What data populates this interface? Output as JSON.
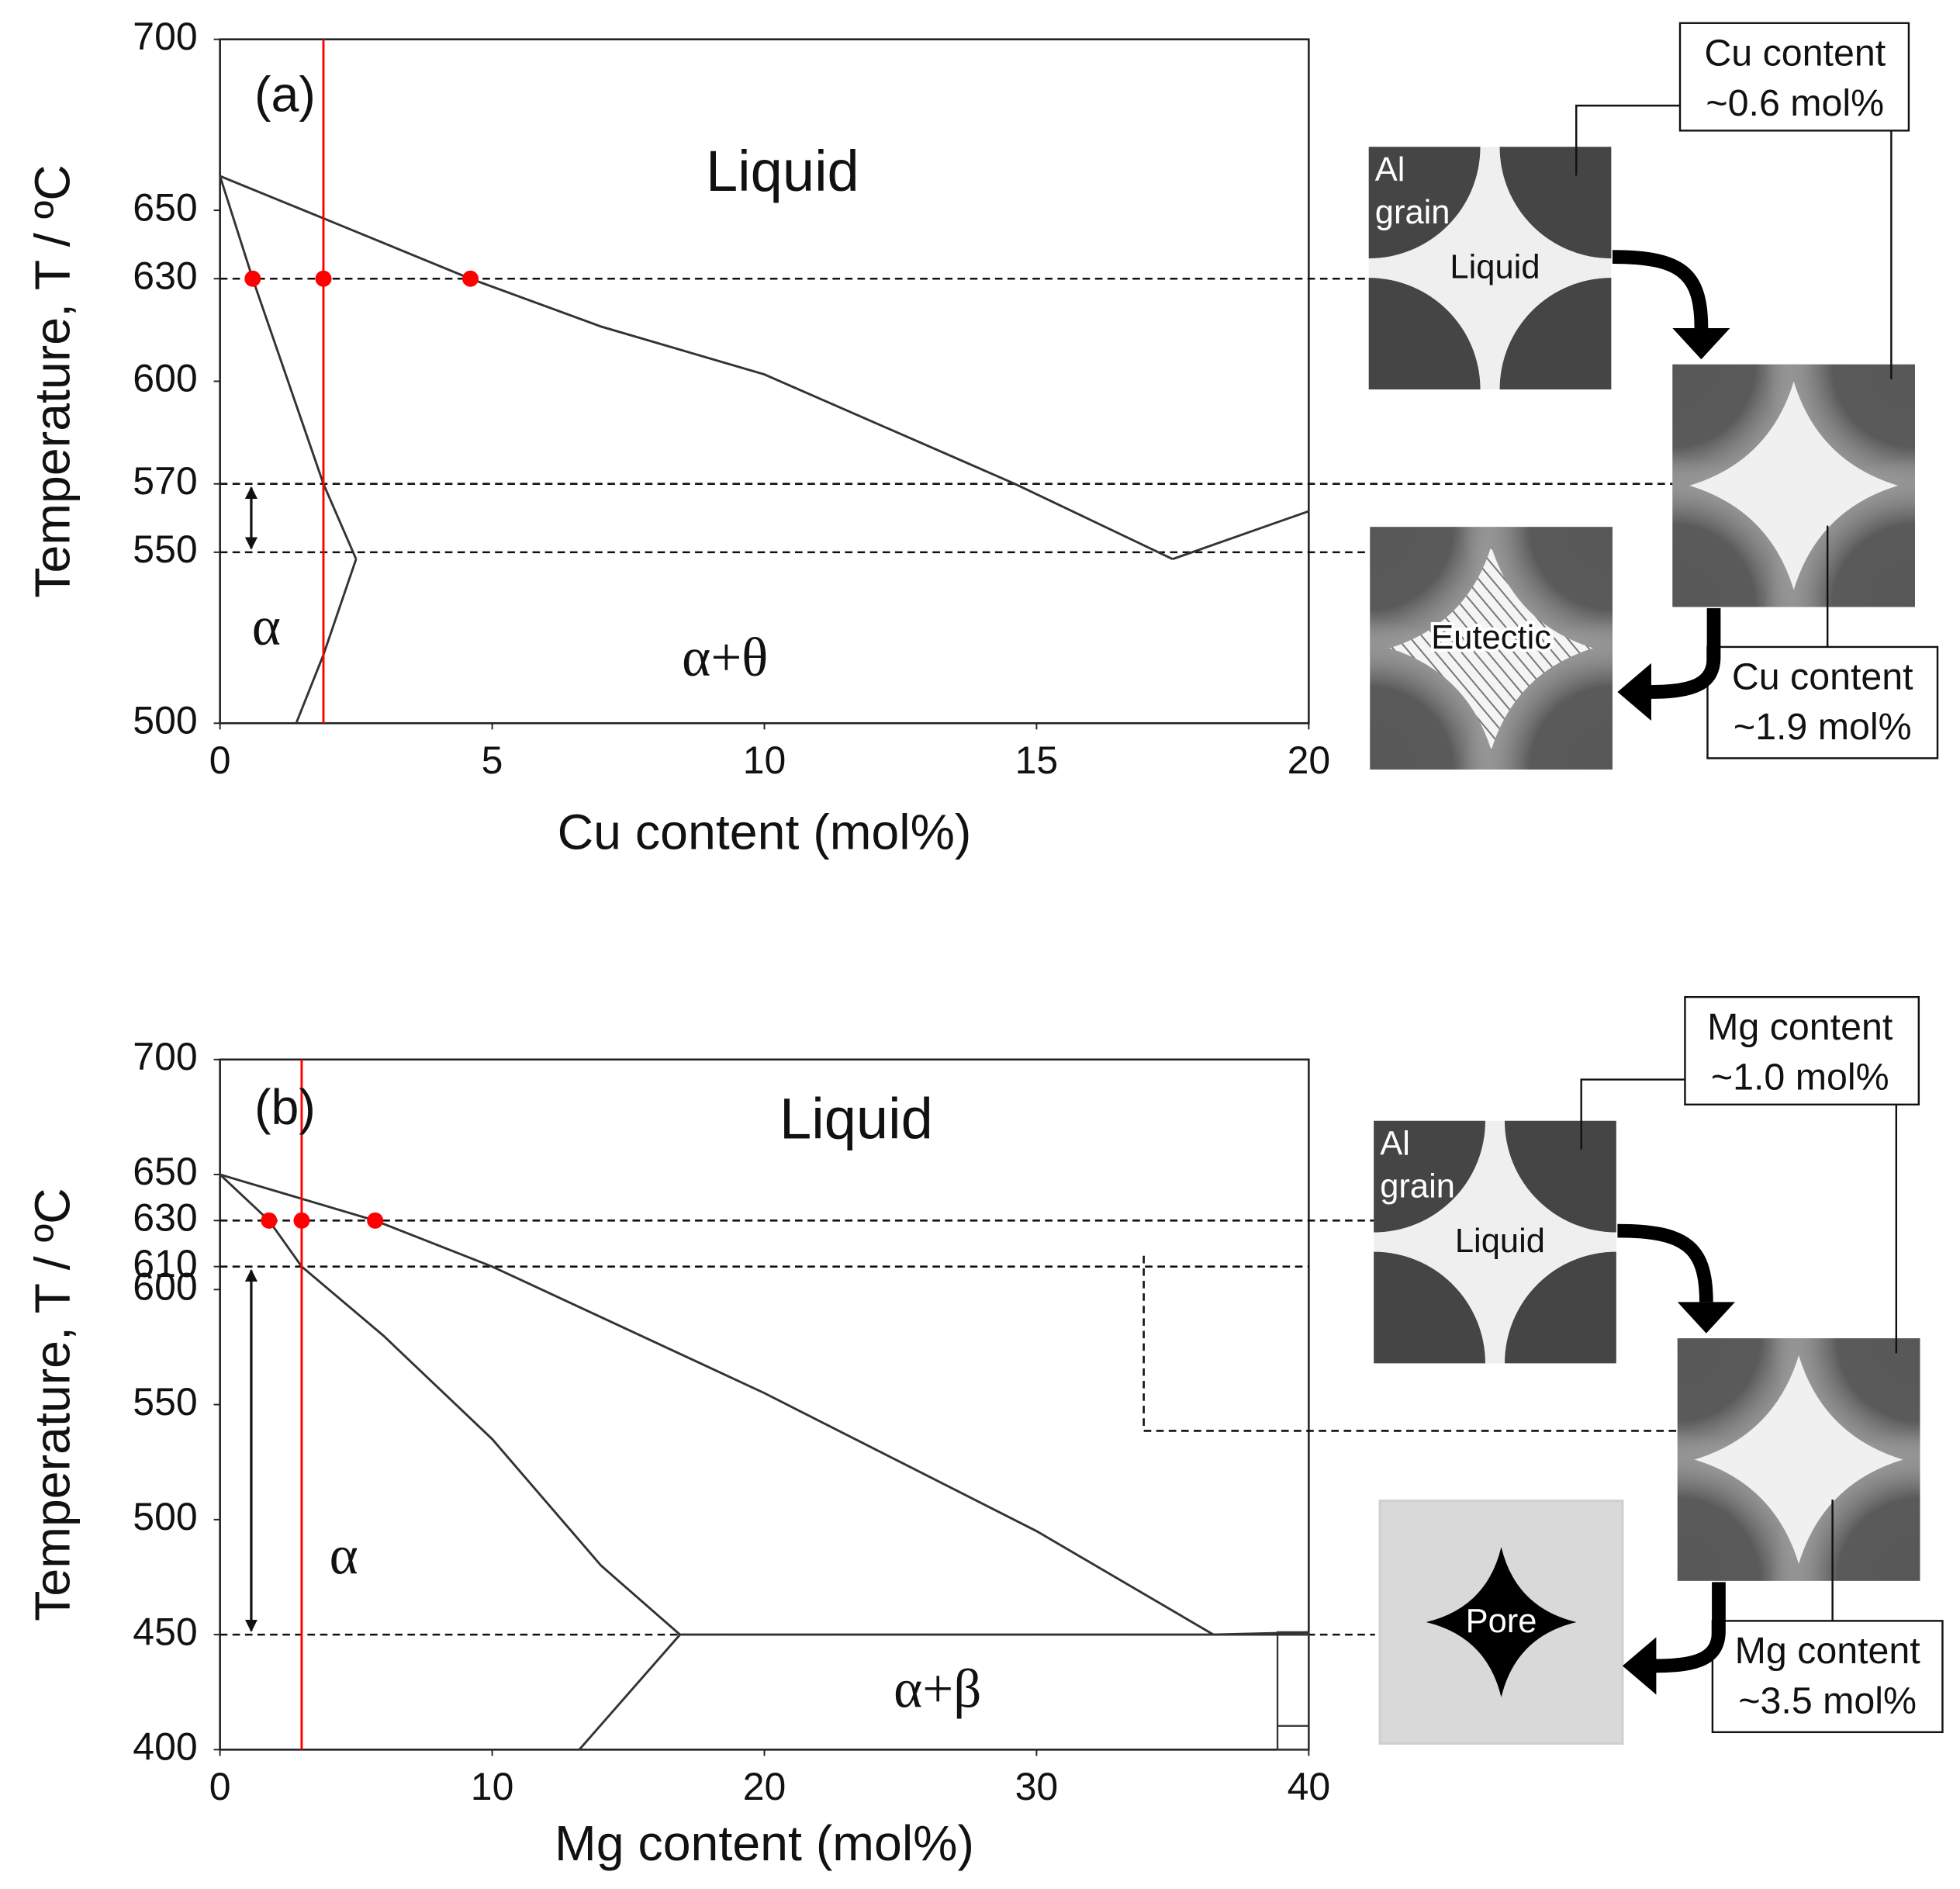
{
  "chart_data": [
    {
      "type": "line",
      "label": "(a)",
      "xlabel": "Cu content (mol%)",
      "ylabel": "Temperature, T / ºC",
      "xlim": [
        0,
        20
      ],
      "ylim": [
        500,
        700
      ],
      "xticks": [
        0,
        5,
        10,
        15,
        20
      ],
      "yticks": [
        500,
        550,
        570,
        600,
        630,
        650,
        700
      ],
      "series": [
        {
          "color": "#333333",
          "x": [
            0,
            2,
            4.6,
            7,
            10,
            14.6,
            17.5
          ],
          "values": [
            660,
            647,
            630,
            616,
            602,
            570,
            548
          ]
        },
        {
          "color": "#333333",
          "x": [
            17.5,
            20
          ],
          "values": [
            548,
            562
          ]
        },
        {
          "color": "#333333",
          "x": [
            0,
            0.6,
            1.9,
            2.5
          ],
          "values": [
            660,
            630,
            570,
            548
          ]
        },
        {
          "color": "#333333",
          "x": [
            2.5,
            1.9,
            1.4
          ],
          "values": [
            548,
            520,
            500
          ]
        }
      ],
      "points": {
        "color": "#ff0000",
        "x": [
          0.6,
          1.9,
          4.6
        ],
        "values": [
          630,
          630,
          630
        ]
      },
      "vline": {
        "color": "#ff0000",
        "value": 1.9
      },
      "reference_lines": [
        630,
        570,
        550
      ],
      "region_labels": [
        "Liquid",
        "α",
        "α+θ"
      ],
      "schematic": {
        "start_box": [
          "Cu content",
          "~0.6 mol%"
        ],
        "grain": [
          "Al",
          "grain"
        ],
        "liquid": "Liquid",
        "final": "Eutectic",
        "end_box": [
          "Cu content",
          "~1.9 mol%"
        ]
      }
    },
    {
      "type": "line",
      "label": "(b)",
      "xlabel": "Mg content (mol%)",
      "ylabel": "Temperature, T / ºC",
      "xlim": [
        0,
        40
      ],
      "ylim": [
        400,
        700
      ],
      "xticks": [
        0,
        10,
        20,
        30,
        40
      ],
      "yticks": [
        400,
        450,
        500,
        550,
        600,
        610,
        630,
        650,
        700
      ],
      "series": [
        {
          "color": "#333333",
          "x": [
            0,
            5.7,
            10,
            20,
            30,
            36.5
          ],
          "values": [
            650,
            630,
            610,
            555,
            495,
            450
          ]
        },
        {
          "color": "#333333",
          "x": [
            36.5,
            40
          ],
          "values": [
            450,
            451
          ]
        },
        {
          "color": "#333333",
          "x": [
            0,
            1.8,
            3.0,
            6,
            10,
            14,
            16.9
          ],
          "values": [
            650,
            630,
            610,
            580,
            535,
            480,
            450
          ]
        },
        {
          "color": "#333333",
          "x": [
            16.9,
            13.2
          ],
          "values": [
            450,
            400
          ]
        },
        {
          "color": "#333333",
          "x": [
            16.9,
            40
          ],
          "values": [
            450,
            450
          ]
        }
      ],
      "points": {
        "color": "#ff0000",
        "x": [
          1.8,
          3.0,
          5.7
        ],
        "values": [
          630,
          630,
          630
        ]
      },
      "vline": {
        "color": "#ff0000",
        "value": 3.0
      },
      "reference_lines": [
        630,
        610,
        450
      ],
      "region_labels": [
        "Liquid",
        "α",
        "α+β"
      ],
      "schematic": {
        "start_box": [
          "Mg content",
          "~1.0 mol%"
        ],
        "grain": [
          "Al",
          "grain"
        ],
        "liquid": "Liquid",
        "final": "Pore",
        "end_box": [
          "Mg content",
          "~3.5 mol%"
        ]
      }
    }
  ]
}
